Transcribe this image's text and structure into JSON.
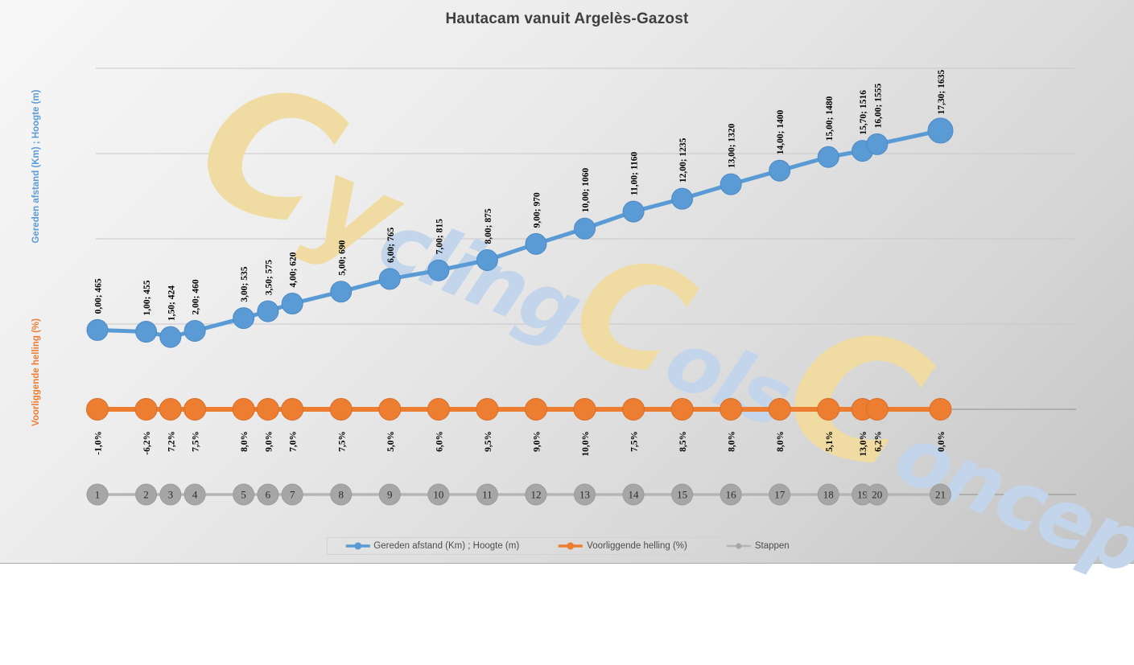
{
  "title": "Hautacam vanuit Argelès-Gazost",
  "axis_titles": {
    "primary": "Gereden afstand (Km) ;  Hoogte (m)",
    "secondary": "Voorliggende  helling (%)"
  },
  "legend": {
    "items": [
      {
        "label": "Gereden afstand (Km) ; Hoogte (m)",
        "series_index": 0
      },
      {
        "label": "Voorliggende helling (%)",
        "series_index": 1
      },
      {
        "label": "Stappen",
        "series_index": 2
      }
    ]
  },
  "watermark": {
    "segments": [
      {
        "text": "C",
        "size": "c1",
        "tone": "yellow"
      },
      {
        "text": "y",
        "size": "y",
        "tone": "yellow"
      },
      {
        "text": "cling",
        "size": "s",
        "tone": "blue"
      },
      {
        "text": "C",
        "size": "c2",
        "tone": "yellow"
      },
      {
        "text": "ols",
        "size": "s",
        "tone": "blue"
      },
      {
        "text": "C",
        "size": "c1",
        "tone": "yellow"
      },
      {
        "text": "oncept",
        "size": "s",
        "tone": "blue"
      }
    ]
  },
  "colors": {
    "series_blue": "#5b9bd5",
    "series_orange": "#ed7d31",
    "series_gray": "#a6a6a6",
    "gray_line": "#b5b5b5",
    "gridline_light": "#c8c8c8",
    "gridline_dark": "#8f8f8f",
    "label_text": "#000000",
    "stappen_text": "#2b2b2b",
    "title_text": "#3f3f3f",
    "watermark_yellow": "#f0dba2",
    "watermark_blue": "#c2d5eb"
  },
  "chart_data": {
    "type": "line",
    "title": "Hautacam vanuit Argelès-Gazost",
    "xlabel": "",
    "ylabel": "Gereden afstand (Km) ;  Hoogte (m)",
    "xlim": [
      0,
      20
    ],
    "ylim": [
      -500,
      2000
    ],
    "grid_major_y": 500,
    "grid": true,
    "legend_position": "bottom",
    "x_km": [
      0,
      1,
      1.5,
      2,
      3,
      3.5,
      4,
      5,
      6,
      7,
      8,
      9,
      10,
      11,
      12,
      13,
      14,
      15,
      15.7,
      16,
      17.3
    ],
    "series": [
      {
        "name": "Gereden afstand (Km) ; Hoogte (m)",
        "color": "#5b9bd5",
        "kind": "hoogte",
        "values": [
          465,
          455,
          424,
          460,
          535,
          575,
          620,
          690,
          765,
          815,
          875,
          970,
          1060,
          1160,
          1235,
          1320,
          1400,
          1480,
          1516,
          1555,
          1635
        ],
        "labels": [
          "0,00; 465",
          "1,00; 455",
          "1,50; 424",
          "2,00; 460",
          "3,00; 535",
          "3,50; 575",
          "4,00; 620",
          "5,00; 690",
          "6,00; 765",
          "7,00; 815",
          "8,00; 875",
          "9,00; 970",
          "10,00; 1060",
          "11,00; 1160",
          "12,00; 1235",
          "13,00; 1320",
          "14,00; 1400",
          "15,00; 1480",
          "15,70; 1516",
          "16,00; 1555",
          "17,30; 1635"
        ]
      },
      {
        "name": "Voorliggende helling (%)",
        "color": "#ed7d31",
        "kind": "helling",
        "row_value": 0,
        "labels": [
          "-1,0%",
          "-6,2%",
          "7,2%",
          "7,5%",
          "8,0%",
          "9,0%",
          "7,0%",
          "7,5%",
          "5,0%",
          "6,0%",
          "9,5%",
          "9,0%",
          "10,0%",
          "7,5%",
          "8,5%",
          "8,0%",
          "8,0%",
          "5,1%",
          "13,0%",
          "6,2%",
          "0,0%"
        ]
      },
      {
        "name": "Stappen",
        "color": "#a6a6a6",
        "kind": "stappen",
        "row_value": -500,
        "labels": [
          "1",
          "2",
          "3",
          "4",
          "5",
          "6",
          "7",
          "8",
          "9",
          "10",
          "11",
          "12",
          "13",
          "14",
          "15",
          "16",
          "17",
          "18",
          "19",
          "20",
          "21"
        ]
      }
    ]
  }
}
